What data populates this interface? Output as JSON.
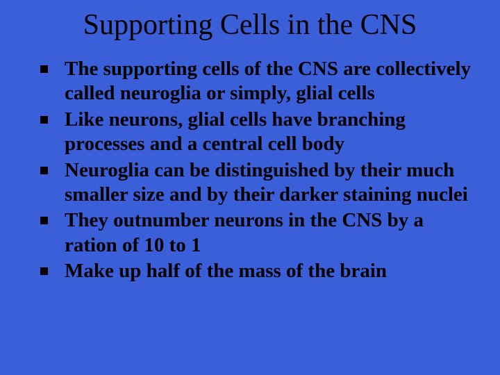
{
  "slide": {
    "background_color": "#3b5fd9",
    "text_color": "#000000",
    "title": "Supporting Cells in the CNS",
    "title_fontsize": 42,
    "title_weight": "normal",
    "body_fontsize": 29,
    "body_weight": "bold",
    "bullet_marker_color": "#000000",
    "bullet_marker_size": 11,
    "bullets": [
      {
        "text": "The supporting cells of the CNS are collectively called neuroglia or simply, glial cells"
      },
      {
        "text": "Like neurons, glial cells have branching processes and a central cell body"
      },
      {
        "text": "Neuroglia can be distinguished by their much smaller size and by their darker staining nuclei"
      },
      {
        "text": "They outnumber neurons in the CNS by a ration of 10 to 1"
      },
      {
        "text": "Make up half of the mass of the brain"
      }
    ]
  }
}
